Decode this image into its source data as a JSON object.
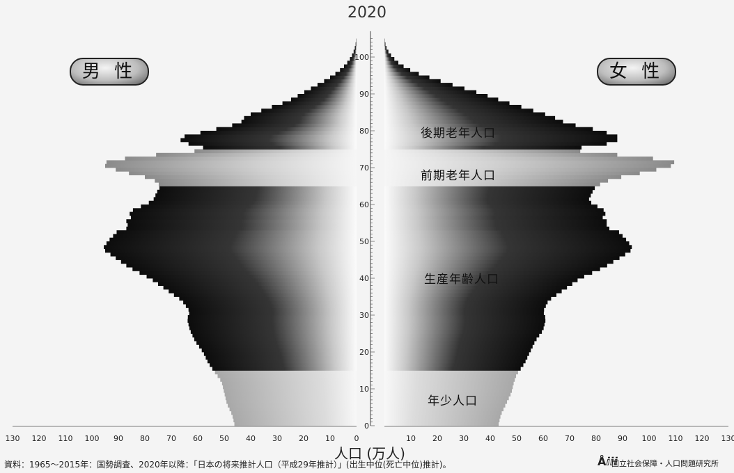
{
  "chart_data": {
    "type": "bar",
    "orientation": "horizontal-pyramid",
    "title": "2020",
    "xlabel": "人口 (万人)",
    "ylabel": "",
    "y": {
      "range": [
        0,
        105
      ],
      "ticks": [
        0,
        10,
        20,
        30,
        40,
        50,
        60,
        70,
        80,
        90,
        100
      ]
    },
    "x": {
      "range": [
        0,
        130
      ],
      "ticks": [
        130,
        120,
        110,
        100,
        90,
        80,
        70,
        60,
        50,
        40,
        30,
        20,
        10,
        0,
        10,
        20,
        30,
        40,
        50,
        60,
        70,
        80,
        90,
        100,
        110,
        120,
        130
      ]
    },
    "legend": {
      "male": "男 性",
      "female": "女 性"
    },
    "zones": [
      {
        "label": "後期老年人口",
        "age_from": 75,
        "age_to": 105
      },
      {
        "label": "前期老年人口",
        "age_from": 65,
        "age_to": 74
      },
      {
        "label": "生産年齢人口",
        "age_from": 15,
        "age_to": 64
      },
      {
        "label": "年少人口",
        "age_from": 0,
        "age_to": 14
      }
    ],
    "age_points": [
      0,
      3,
      6,
      9,
      12,
      14,
      15,
      17,
      20,
      23,
      26,
      29,
      31,
      34,
      37,
      40,
      43,
      46,
      48,
      50,
      53,
      54,
      55,
      56,
      58,
      61,
      64,
      65,
      67,
      69,
      71,
      72,
      73,
      75,
      76,
      78,
      80,
      82,
      84,
      86,
      88,
      90,
      92,
      94,
      96,
      98,
      100,
      102,
      104,
      105
    ],
    "male": [
      46,
      47,
      49,
      50,
      51,
      53,
      54,
      56,
      58,
      61,
      63,
      64,
      63,
      66,
      72,
      78,
      86,
      92,
      96,
      94,
      90,
      84,
      89,
      85,
      86,
      77,
      75,
      74,
      77,
      89,
      97,
      92,
      83,
      54,
      62,
      68,
      56,
      44,
      42,
      34,
      26,
      21,
      16,
      11,
      7,
      4,
      2,
      0.8,
      0.2,
      0
    ],
    "female": [
      43,
      44,
      46,
      48,
      49,
      50,
      51,
      53,
      55,
      57,
      60,
      61,
      60,
      62,
      68,
      74,
      83,
      90,
      94,
      92,
      88,
      82,
      86,
      82,
      84,
      77,
      79,
      80,
      86,
      100,
      111,
      108,
      95,
      67,
      82,
      90,
      82,
      69,
      63,
      54,
      45,
      37,
      28,
      19,
      11,
      6,
      3,
      1,
      0.2,
      0
    ]
  },
  "source_note": "資料：1965〜2015年：国勢調査、2020年以降：「日本の将来推計人口（平成29年推計）」(出生中位(死亡中位)推計)。",
  "organization": "国立社会保障・人口問題研究所",
  "org_mark": "Åⅈⅈⅈ"
}
